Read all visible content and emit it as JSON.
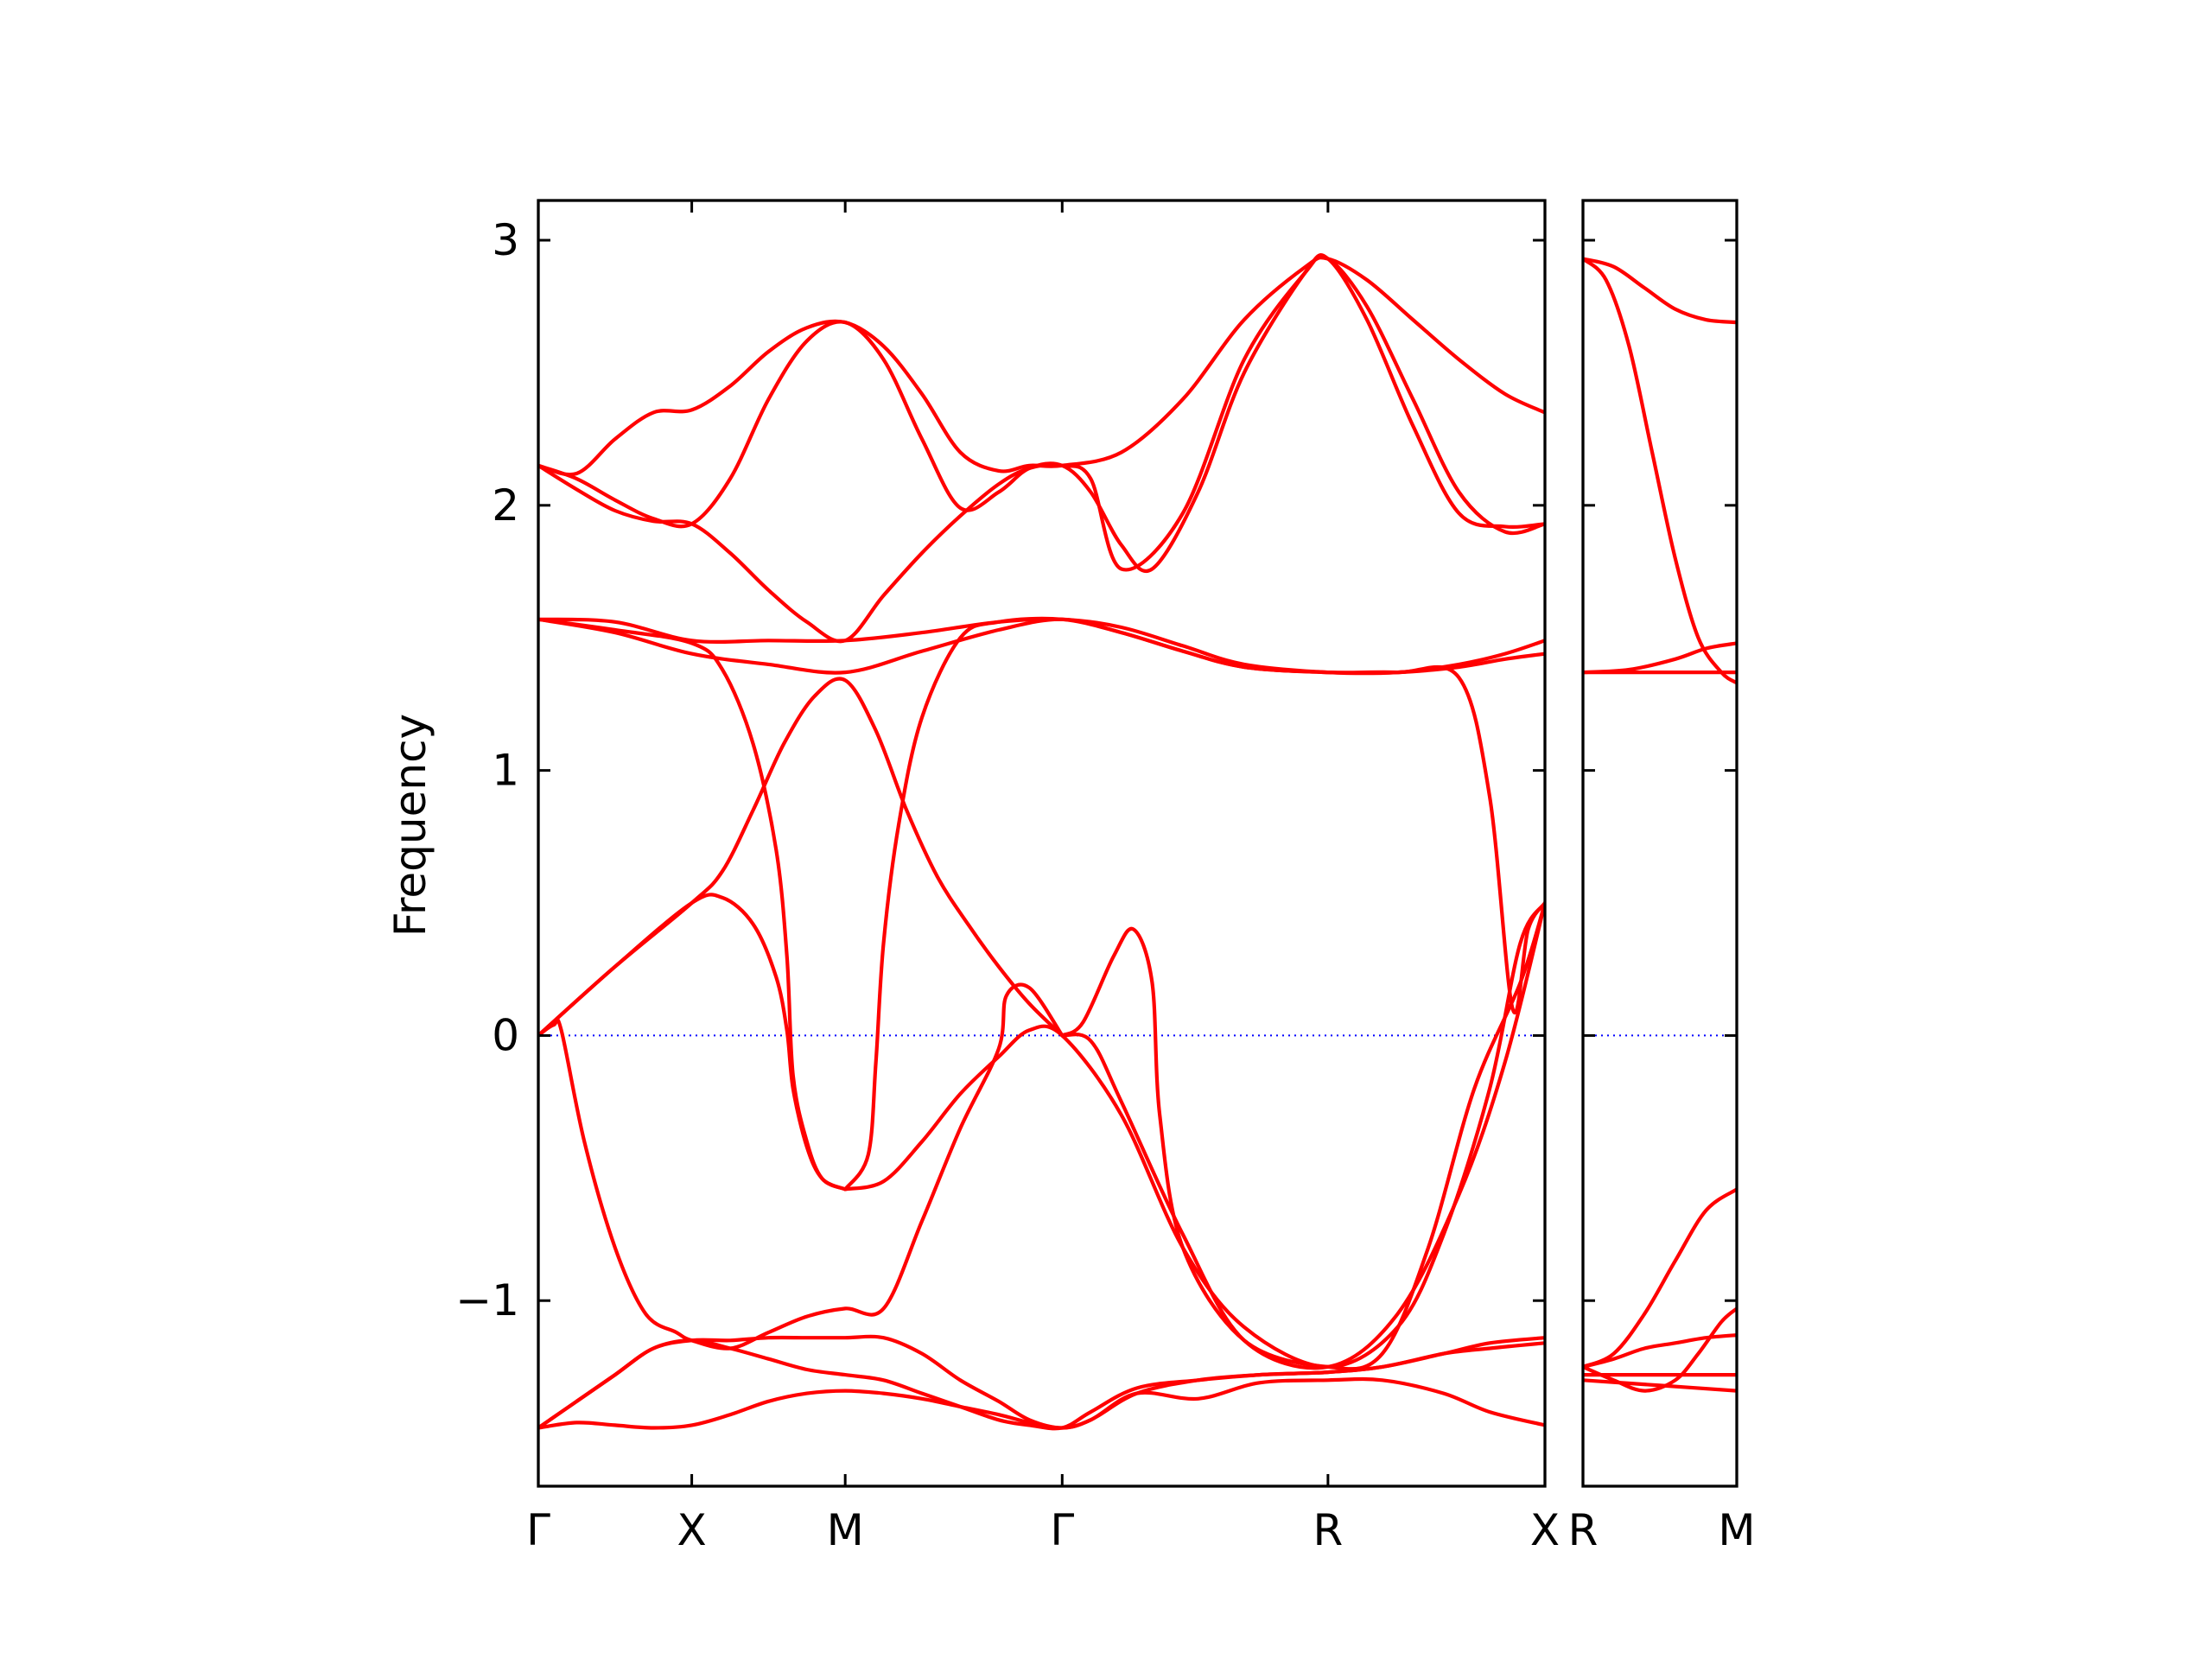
{
  "chart_data": {
    "type": "line",
    "ylabel": "Frequency",
    "ylim": [
      -1.7,
      3.15
    ],
    "yticks": [
      {
        "value": -1,
        "label": "−1"
      },
      {
        "value": 0,
        "label": "0"
      },
      {
        "value": 1,
        "label": "1"
      },
      {
        "value": 2,
        "label": "2"
      },
      {
        "value": 3,
        "label": "3"
      }
    ],
    "zero_line_color": "#0000ff",
    "band_color": "#ff0000",
    "panels": [
      {
        "xlim": [
          0,
          6.5
        ],
        "high_symmetry_points": [
          {
            "x": 0,
            "label": "Γ"
          },
          {
            "x": 1,
            "label": "X"
          },
          {
            "x": 2,
            "label": "M"
          },
          {
            "x": 3.414,
            "label": "Γ"
          },
          {
            "x": 5.146,
            "label": "R"
          },
          {
            "x": 6.56,
            "label": "X"
          }
        ],
        "series": [
          {
            "x": [
              0,
              0.25,
              0.5,
              0.75,
              1,
              1.25,
              1.5,
              1.75,
              2,
              2.25,
              2.5,
              2.75,
              3,
              3.2,
              3.414,
              3.8,
              4.2,
              4.6,
              5,
              5.146,
              5.4,
              5.7,
              6,
              6.3,
              6.56
            ],
            "y": [
              2.15,
              2.12,
              2.25,
              2.35,
              2.36,
              2.45,
              2.58,
              2.67,
              2.69,
              2.6,
              2.42,
              2.2,
              2.13,
              2.15,
              2.15,
              2.2,
              2.4,
              2.7,
              2.9,
              2.93,
              2.85,
              2.7,
              2.55,
              2.42,
              2.35
            ]
          },
          {
            "x": [
              0,
              0.25,
              0.5,
              0.75,
              1,
              1.25,
              1.5,
              1.75,
              2,
              2.25,
              2.5,
              2.75,
              3,
              3.2,
              3.414,
              3.6,
              3.8,
              4.0,
              4.3,
              4.6,
              5,
              5.146,
              5.4,
              5.7,
              6,
              6.3,
              6.56
            ],
            "y": [
              2.15,
              2.1,
              2.02,
              1.95,
              1.93,
              2.1,
              2.4,
              2.62,
              2.69,
              2.55,
              2.25,
              1.99,
              2.05,
              2.14,
              2.15,
              2.05,
              1.85,
              1.76,
              2.05,
              2.5,
              2.88,
              2.93,
              2.75,
              2.4,
              2.05,
              1.9,
              1.93
            ]
          },
          {
            "x": [
              0,
              0.25,
              0.5,
              0.75,
              1,
              1.25,
              1.5,
              1.75,
              2,
              2.25,
              2.5,
              2.75,
              3,
              3.2,
              3.414,
              3.6,
              3.8,
              4.2,
              4.6,
              5,
              5.146,
              5.4,
              5.7,
              6,
              6.3,
              6.56
            ],
            "y": [
              2.15,
              2.06,
              1.98,
              1.94,
              1.93,
              1.82,
              1.68,
              1.56,
              1.49,
              1.66,
              1.82,
              1.96,
              2.08,
              2.14,
              2.15,
              2.1,
              1.76,
              1.97,
              2.55,
              2.88,
              2.93,
              2.7,
              2.3,
              1.97,
              1.92,
              1.93
            ]
          },
          {
            "x": [
              0,
              0.5,
              1,
              1.5,
              2,
              2.5,
              3,
              3.414,
              3.8,
              4.2,
              4.6,
              5.146,
              5.6,
              6.0,
              6.3,
              6.56
            ],
            "y": [
              1.57,
              1.56,
              1.49,
              1.49,
              1.49,
              1.52,
              1.56,
              1.57,
              1.54,
              1.47,
              1.4,
              1.37,
              1.37,
              1.4,
              1.44,
              1.49
            ]
          },
          {
            "x": [
              0,
              0.5,
              1,
              1.5,
              2,
              2.5,
              3,
              3.414,
              3.8,
              4.2,
              4.6,
              5.146,
              5.6,
              6.0,
              6.3,
              6.56
            ],
            "y": [
              1.57,
              1.52,
              1.44,
              1.4,
              1.37,
              1.45,
              1.53,
              1.57,
              1.52,
              1.45,
              1.39,
              1.37,
              1.37,
              1.39,
              1.42,
              1.44
            ]
          },
          {
            "x": [
              0,
              0.5,
              1,
              1.2,
              1.4,
              1.55,
              1.62,
              1.66,
              1.75,
              1.85,
              2.0
            ],
            "y": [
              1.57,
              1.53,
              1.48,
              1.38,
              1.1,
              0.7,
              0.3,
              -0.15,
              -0.4,
              -0.54,
              -0.58
            ]
          },
          {
            "x": [
              0,
              0.5,
              1,
              1.2,
              1.4,
              1.6,
              1.8,
              2.0,
              2.2,
              2.4,
              2.6,
              2.8,
              3.0,
              3.2,
              3.414
            ],
            "y": [
              0.0,
              0.26,
              0.5,
              0.62,
              0.85,
              1.1,
              1.28,
              1.34,
              1.15,
              0.85,
              0.6,
              0.42,
              0.26,
              0.12,
              0.0
            ]
          },
          {
            "x": [
              0,
              0.5,
              1,
              1.2,
              1.4,
              1.55,
              1.62,
              1.66,
              1.75,
              1.85,
              2.0
            ],
            "y": [
              0.0,
              0.26,
              0.5,
              0.52,
              0.42,
              0.22,
              0.02,
              -0.2,
              -0.42,
              -0.54,
              -0.58
            ]
          },
          {
            "x": [
              2.0,
              2.15,
              2.2,
              2.25,
              2.35,
              2.5,
              2.75,
              3.0,
              3.414,
              3.8,
              4.2,
              4.6,
              5.146,
              5.6,
              6.0,
              6.2,
              6.35,
              6.45,
              6.56
            ],
            "y": [
              -0.58,
              -0.45,
              -0.1,
              0.35,
              0.8,
              1.2,
              1.5,
              1.56,
              1.57,
              1.52,
              1.45,
              1.39,
              1.37,
              1.37,
              1.35,
              0.9,
              0.1,
              0.4,
              0.5
            ]
          },
          {
            "x": [
              2.0,
              2.25,
              2.5,
              2.75,
              3.0,
              3.2,
              3.414,
              3.8,
              4.2,
              4.6,
              5.146,
              5.6,
              5.9,
              6.2,
              6.4,
              6.56
            ],
            "y": [
              -0.58,
              -0.55,
              -0.4,
              -0.22,
              -0.08,
              0.02,
              0.0,
              -0.3,
              -0.8,
              -1.1,
              -1.25,
              -1.1,
              -0.75,
              -0.2,
              0.35,
              0.5
            ]
          },
          {
            "x": [
              0,
              0.1,
              0.15,
              0.3,
              0.5,
              0.7,
              0.9,
              1.0,
              1.25,
              1.5,
              1.75,
              2.0,
              2.25,
              2.5,
              2.75,
              3.0,
              3.05,
              3.2,
              3.414
            ],
            "y": [
              0.0,
              0.04,
              0.02,
              -0.4,
              -0.8,
              -1.05,
              -1.12,
              -1.15,
              -1.18,
              -1.12,
              -1.06,
              -1.03,
              -1.03,
              -0.7,
              -0.35,
              -0.05,
              0.15,
              0.18,
              0.0
            ]
          },
          {
            "x": [
              3.414,
              3.55,
              3.75,
              3.88,
              4.0,
              4.05,
              4.2,
              4.6,
              5.146,
              5.5,
              5.8,
              6.1,
              6.4,
              6.56
            ],
            "y": [
              0.0,
              0.05,
              0.3,
              0.4,
              0.2,
              -0.3,
              -0.8,
              -1.15,
              -1.25,
              -1.2,
              -0.8,
              -0.2,
              0.2,
              0.5
            ]
          },
          {
            "x": [
              3.414,
              3.6,
              3.8,
              4.2,
              4.6,
              5.146,
              5.6,
              6.0,
              6.3,
              6.56
            ],
            "y": [
              0.0,
              -0.02,
              -0.25,
              -0.75,
              -1.15,
              -1.25,
              -1.05,
              -0.6,
              -0.1,
              0.5
            ]
          },
          {
            "x": [
              0,
              0.25,
              0.5,
              0.75,
              1,
              1.25,
              1.5,
              1.75,
              2,
              2.25,
              2.5,
              2.75,
              3,
              3.2,
              3.414,
              3.6,
              3.9,
              4.3,
              4.7,
              5.146,
              5.5,
              5.9,
              6.2,
              6.56
            ],
            "y": [
              -1.48,
              -1.38,
              -1.28,
              -1.18,
              -1.15,
              -1.15,
              -1.14,
              -1.14,
              -1.14,
              -1.14,
              -1.2,
              -1.3,
              -1.38,
              -1.45,
              -1.48,
              -1.45,
              -1.35,
              -1.3,
              -1.28,
              -1.27,
              -1.25,
              -1.2,
              -1.16,
              -1.14
            ]
          },
          {
            "x": [
              0,
              0.25,
              0.5,
              0.75,
              1,
              1.25,
              1.5,
              1.75,
              2,
              2.25,
              2.5,
              2.75,
              3,
              3.2,
              3.414,
              3.6,
              3.9,
              4.3,
              4.7,
              5.146,
              5.5,
              5.9,
              6.2,
              6.56
            ],
            "y": [
              -1.48,
              -1.38,
              -1.28,
              -1.18,
              -1.15,
              -1.18,
              -1.22,
              -1.26,
              -1.28,
              -1.3,
              -1.35,
              -1.4,
              -1.45,
              -1.47,
              -1.48,
              -1.42,
              -1.33,
              -1.3,
              -1.28,
              -1.27,
              -1.25,
              -1.2,
              -1.18,
              -1.16
            ]
          },
          {
            "x": [
              0,
              0.25,
              0.5,
              0.75,
              1,
              1.25,
              1.5,
              1.75,
              2,
              2.25,
              2.5,
              2.75,
              3,
              3.2,
              3.414,
              3.6,
              3.9,
              4.3,
              4.7,
              5.146,
              5.5,
              5.9,
              6.2,
              6.56
            ],
            "y": [
              -1.48,
              -1.46,
              -1.47,
              -1.48,
              -1.47,
              -1.43,
              -1.38,
              -1.35,
              -1.34,
              -1.35,
              -1.37,
              -1.4,
              -1.43,
              -1.46,
              -1.48,
              -1.45,
              -1.35,
              -1.37,
              -1.31,
              -1.3,
              -1.3,
              -1.35,
              -1.42,
              -1.47
            ]
          }
        ]
      },
      {
        "xlim": [
          0,
          1
        ],
        "high_symmetry_points": [
          {
            "x": 0,
            "label": "R"
          },
          {
            "x": 1,
            "label": "M"
          }
        ],
        "series": [
          {
            "x": [
              0,
              0.2,
              0.4,
              0.6,
              0.8,
              1.0
            ],
            "y": [
              2.93,
              2.9,
              2.82,
              2.74,
              2.7,
              2.69
            ]
          },
          {
            "x": [
              0,
              0.15,
              0.3,
              0.45,
              0.6,
              0.75,
              0.9,
              1.0
            ],
            "y": [
              2.93,
              2.85,
              2.6,
              2.2,
              1.8,
              1.5,
              1.37,
              1.33
            ]
          },
          {
            "x": [
              0,
              0.3,
              0.6,
              0.8,
              1.0
            ],
            "y": [
              1.37,
              1.38,
              1.42,
              1.46,
              1.48
            ]
          },
          {
            "x": [
              0,
              0.5,
              1.0
            ],
            "y": [
              1.37,
              1.37,
              1.37
            ]
          },
          {
            "x": [
              0,
              0.2,
              0.4,
              0.6,
              0.8,
              1.0
            ],
            "y": [
              -1.25,
              -1.2,
              -1.05,
              -0.85,
              -0.66,
              -0.58
            ]
          },
          {
            "x": [
              0,
              0.2,
              0.4,
              0.6,
              0.8,
              1.0
            ],
            "y": [
              -1.25,
              -1.22,
              -1.18,
              -1.16,
              -1.14,
              -1.13
            ]
          },
          {
            "x": [
              0,
              0.2,
              0.4,
              0.6,
              0.75,
              0.9,
              1.0
            ],
            "y": [
              -1.25,
              -1.3,
              -1.34,
              -1.3,
              -1.2,
              -1.08,
              -1.03
            ]
          },
          {
            "x": [
              0,
              0.5,
              1.0
            ],
            "y": [
              -1.28,
              -1.28,
              -1.28
            ]
          },
          {
            "x": [
              0,
              0.5,
              1.0
            ],
            "y": [
              -1.3,
              -1.32,
              -1.34
            ]
          }
        ]
      }
    ]
  }
}
